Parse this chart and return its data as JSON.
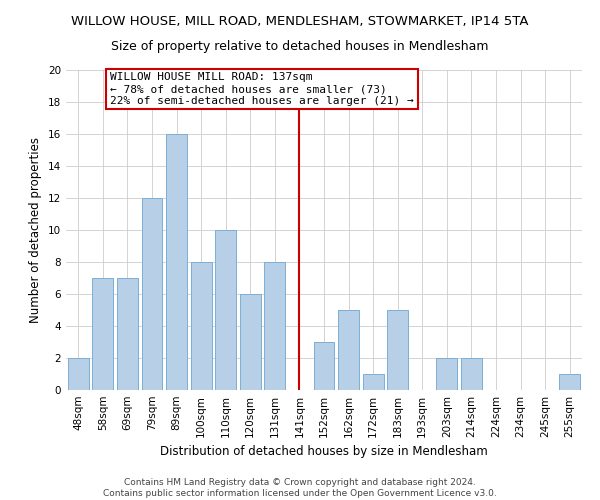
{
  "title": "WILLOW HOUSE, MILL ROAD, MENDLESHAM, STOWMARKET, IP14 5TA",
  "subtitle": "Size of property relative to detached houses in Mendlesham",
  "xlabel": "Distribution of detached houses by size in Mendlesham",
  "ylabel": "Number of detached properties",
  "bar_labels": [
    "48sqm",
    "58sqm",
    "69sqm",
    "79sqm",
    "89sqm",
    "100sqm",
    "110sqm",
    "120sqm",
    "131sqm",
    "141sqm",
    "152sqm",
    "162sqm",
    "172sqm",
    "183sqm",
    "193sqm",
    "203sqm",
    "214sqm",
    "224sqm",
    "234sqm",
    "245sqm",
    "255sqm"
  ],
  "bar_values": [
    2,
    7,
    7,
    12,
    16,
    8,
    10,
    6,
    8,
    0,
    3,
    5,
    1,
    5,
    0,
    2,
    2,
    0,
    0,
    0,
    1
  ],
  "bar_color": "#b8cfe8",
  "bar_edge_color": "#7aafd4",
  "highlight_line_color": "#cc0000",
  "annotation_text": "WILLOW HOUSE MILL ROAD: 137sqm\n← 78% of detached houses are smaller (73)\n22% of semi-detached houses are larger (21) →",
  "annotation_box_color": "#ffffff",
  "annotation_box_edge": "#cc0000",
  "ylim": [
    0,
    20
  ],
  "yticks": [
    0,
    2,
    4,
    6,
    8,
    10,
    12,
    14,
    16,
    18,
    20
  ],
  "footer_line1": "Contains HM Land Registry data © Crown copyright and database right 2024.",
  "footer_line2": "Contains public sector information licensed under the Open Government Licence v3.0.",
  "background_color": "#ffffff",
  "grid_color": "#cccccc",
  "title_fontsize": 9.5,
  "subtitle_fontsize": 9,
  "axis_label_fontsize": 8.5,
  "tick_fontsize": 7.5,
  "annotation_fontsize": 8,
  "footer_fontsize": 6.5
}
